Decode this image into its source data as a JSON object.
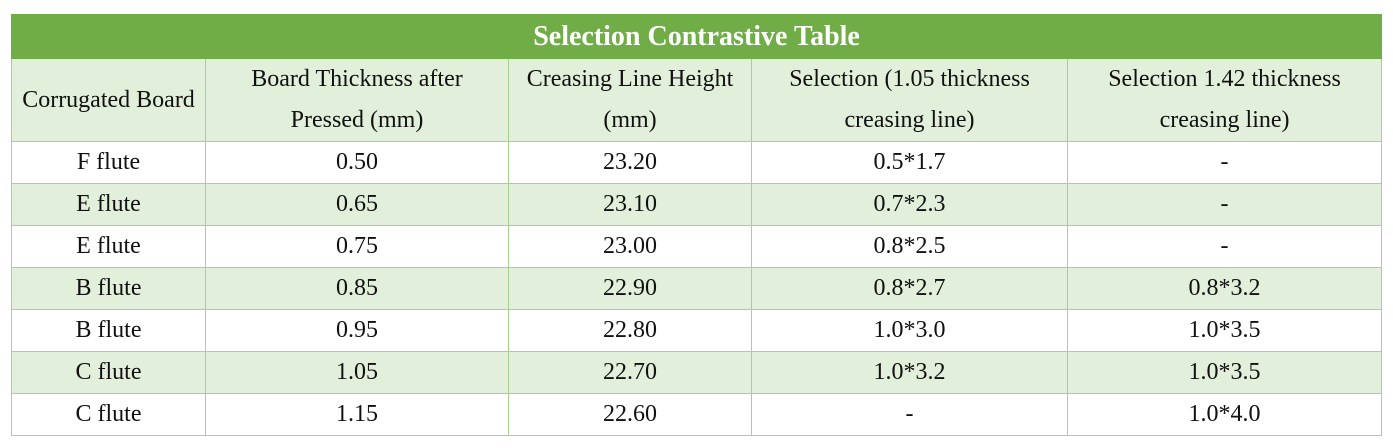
{
  "table": {
    "title": "Selection Contrastive Table",
    "header": [
      "Corrugated Board",
      "Board Thickness after Pressed (mm)",
      "Creasing Line Height (mm)",
      "Selection (1.05 thickness creasing line)",
      "Selection 1.42 thickness creasing line)"
    ],
    "rows": [
      [
        "F flute",
        "0.50",
        "23.20",
        "0.5*1.7",
        "-"
      ],
      [
        "E flute",
        "0.65",
        "23.10",
        "0.7*2.3",
        "-"
      ],
      [
        "E flute",
        "0.75",
        "23.00",
        "0.8*2.5",
        "-"
      ],
      [
        "B flute",
        "0.85",
        "22.90",
        "0.8*2.7",
        "0.8*3.2"
      ],
      [
        "B flute",
        "0.95",
        "22.80",
        "1.0*3.0",
        "1.0*3.5"
      ],
      [
        "C flute",
        "1.05",
        "22.70",
        "1.0*3.2",
        "1.0*3.5"
      ],
      [
        "C flute",
        "1.15",
        "22.60",
        "-",
        "1.0*4.0"
      ]
    ]
  }
}
